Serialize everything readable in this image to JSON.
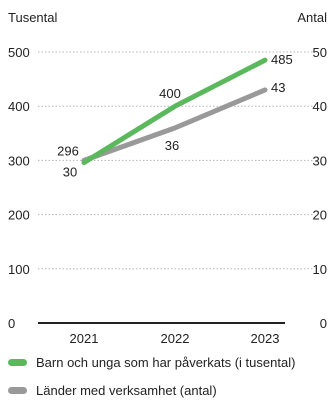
{
  "chart_data": {
    "type": "line",
    "left_axis_title": "Tusental",
    "right_axis_title": "Antal",
    "categories": [
      "2021",
      "2022",
      "2023"
    ],
    "left_axis": {
      "min": 0,
      "max": 500,
      "ticks": [
        "0",
        "100",
        "200",
        "300",
        "400",
        "500"
      ]
    },
    "right_axis": {
      "min": 0,
      "max": 50,
      "ticks": [
        "0",
        "10",
        "20",
        "30",
        "40",
        "50"
      ]
    },
    "grid": "dotted horizontal",
    "series": [
      {
        "name": "Barn och unga som har påverkats (i tusental)",
        "axis": "left",
        "color": "#5cb85c",
        "values": [
          296,
          400,
          485
        ],
        "labels": [
          "296",
          "400",
          "485"
        ]
      },
      {
        "name": "Länder med verksamhet (antal)",
        "axis": "right",
        "color": "#999999",
        "values": [
          30,
          36,
          43
        ],
        "labels": [
          "30",
          "36",
          "43"
        ]
      }
    ],
    "legend_position": "bottom"
  }
}
